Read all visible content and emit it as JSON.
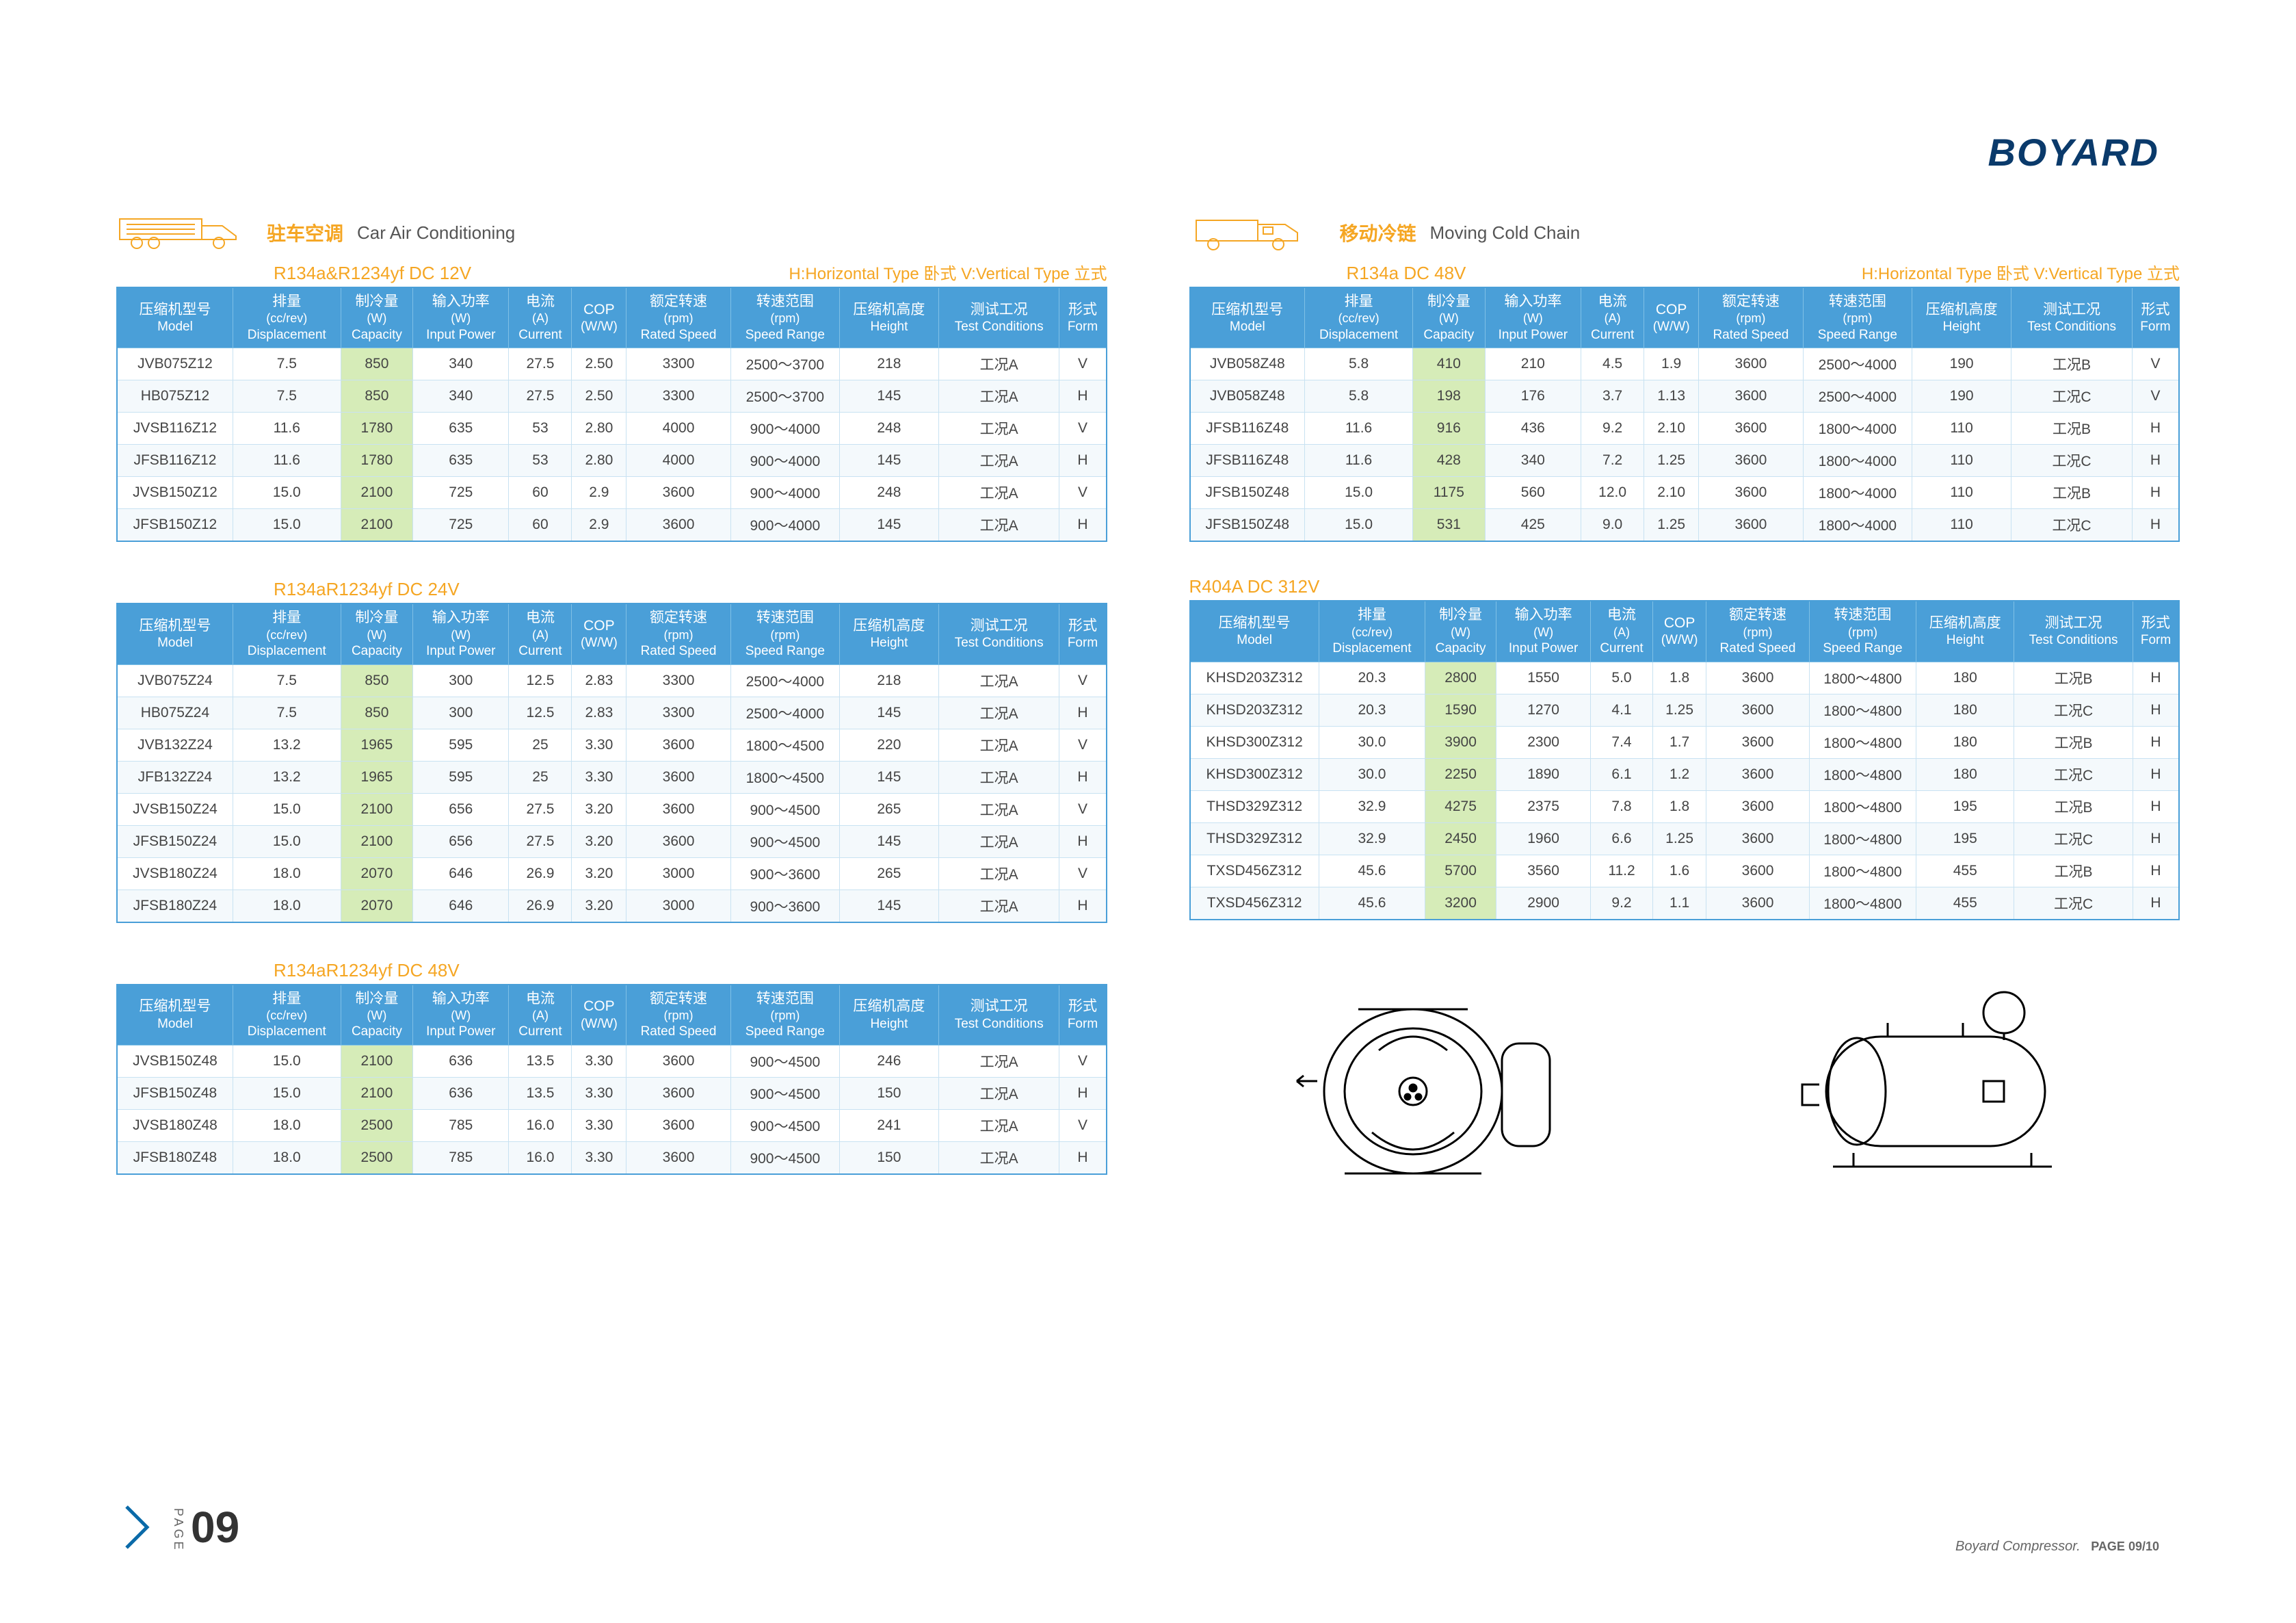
{
  "brand": "BOYARD",
  "legend": "H:Horizontal Type 卧式  V:Vertical Type 立式",
  "footer": {
    "text": "Boyard Compressor.",
    "page": "PAGE 09/10"
  },
  "page_number": "09",
  "page_label": "PAGE",
  "left": {
    "title_cn": "驻车空调",
    "title_en": "Car Air Conditioning",
    "tables": [
      {
        "refrig": "R134a&R1234yf DC 12V",
        "show_legend": true
      },
      {
        "refrig": "R134aR1234yf DC 24V",
        "show_legend": false
      },
      {
        "refrig": "R134aR1234yf DC 48V",
        "show_legend": false
      }
    ]
  },
  "right": {
    "title_cn": "移动冷链",
    "title_en": "Moving Cold Chain",
    "tables": [
      {
        "refrig": "R134a DC 48V",
        "show_legend": true
      },
      {
        "refrig": "R404A DC 312V",
        "standalone": true
      }
    ]
  },
  "columns": [
    {
      "cn": "压缩机型号",
      "unit": "",
      "en": "Model"
    },
    {
      "cn": "排量",
      "unit": "(cc/rev)",
      "en": "Displacement"
    },
    {
      "cn": "制冷量",
      "unit": "(W)",
      "en": "Capacity"
    },
    {
      "cn": "输入功率",
      "unit": "(W)",
      "en": "Input Power"
    },
    {
      "cn": "电流",
      "unit": "(A)",
      "en": "Current"
    },
    {
      "cn": "COP",
      "unit": "",
      "en": "(W/W)"
    },
    {
      "cn": "额定转速",
      "unit": "(rpm)",
      "en": "Rated Speed"
    },
    {
      "cn": "转速范围",
      "unit": "(rpm)",
      "en": "Speed Range"
    },
    {
      "cn": "压缩机高度",
      "unit": "",
      "en": "Height"
    },
    {
      "cn": "测试工况",
      "unit": "",
      "en": "Test Conditions"
    },
    {
      "cn": "形式",
      "unit": "",
      "en": "Form"
    }
  ],
  "table_data": {
    "0": [
      [
        "JVB075Z12",
        "7.5",
        "850",
        "340",
        "27.5",
        "2.50",
        "3300",
        "2500～3700",
        "218",
        "工况A",
        "V"
      ],
      [
        "HB075Z12",
        "7.5",
        "850",
        "340",
        "27.5",
        "2.50",
        "3300",
        "2500～3700",
        "145",
        "工况A",
        "H"
      ],
      [
        "JVSB116Z12",
        "11.6",
        "1780",
        "635",
        "53",
        "2.80",
        "4000",
        "900～4000",
        "248",
        "工况A",
        "V"
      ],
      [
        "JFSB116Z12",
        "11.6",
        "1780",
        "635",
        "53",
        "2.80",
        "4000",
        "900～4000",
        "145",
        "工况A",
        "H"
      ],
      [
        "JVSB150Z12",
        "15.0",
        "2100",
        "725",
        "60",
        "2.9",
        "3600",
        "900～4000",
        "248",
        "工况A",
        "V"
      ],
      [
        "JFSB150Z12",
        "15.0",
        "2100",
        "725",
        "60",
        "2.9",
        "3600",
        "900～4000",
        "145",
        "工况A",
        "H"
      ]
    ],
    "1": [
      [
        "JVB075Z24",
        "7.5",
        "850",
        "300",
        "12.5",
        "2.83",
        "3300",
        "2500～4000",
        "218",
        "工况A",
        "V"
      ],
      [
        "HB075Z24",
        "7.5",
        "850",
        "300",
        "12.5",
        "2.83",
        "3300",
        "2500～4000",
        "145",
        "工况A",
        "H"
      ],
      [
        "JVB132Z24",
        "13.2",
        "1965",
        "595",
        "25",
        "3.30",
        "3600",
        "1800～4500",
        "220",
        "工况A",
        "V"
      ],
      [
        "JFB132Z24",
        "13.2",
        "1965",
        "595",
        "25",
        "3.30",
        "3600",
        "1800～4500",
        "145",
        "工况A",
        "H"
      ],
      [
        "JVSB150Z24",
        "15.0",
        "2100",
        "656",
        "27.5",
        "3.20",
        "3600",
        "900～4500",
        "265",
        "工况A",
        "V"
      ],
      [
        "JFSB150Z24",
        "15.0",
        "2100",
        "656",
        "27.5",
        "3.20",
        "3600",
        "900～4500",
        "145",
        "工况A",
        "H"
      ],
      [
        "JVSB180Z24",
        "18.0",
        "2070",
        "646",
        "26.9",
        "3.20",
        "3000",
        "900～3600",
        "265",
        "工况A",
        "V"
      ],
      [
        "JFSB180Z24",
        "18.0",
        "2070",
        "646",
        "26.9",
        "3.20",
        "3000",
        "900～3600",
        "145",
        "工况A",
        "H"
      ]
    ],
    "2": [
      [
        "JVSB150Z48",
        "15.0",
        "2100",
        "636",
        "13.5",
        "3.30",
        "3600",
        "900～4500",
        "246",
        "工况A",
        "V"
      ],
      [
        "JFSB150Z48",
        "15.0",
        "2100",
        "636",
        "13.5",
        "3.30",
        "3600",
        "900～4500",
        "150",
        "工况A",
        "H"
      ],
      [
        "JVSB180Z48",
        "18.0",
        "2500",
        "785",
        "16.0",
        "3.30",
        "3600",
        "900～4500",
        "241",
        "工况A",
        "V"
      ],
      [
        "JFSB180Z48",
        "18.0",
        "2500",
        "785",
        "16.0",
        "3.30",
        "3600",
        "900～4500",
        "150",
        "工况A",
        "H"
      ]
    ],
    "3": [
      [
        "JVB058Z48",
        "5.8",
        "410",
        "210",
        "4.5",
        "1.9",
        "3600",
        "2500～4000",
        "190",
        "工况B",
        "V"
      ],
      [
        "JVB058Z48",
        "5.8",
        "198",
        "176",
        "3.7",
        "1.13",
        "3600",
        "2500～4000",
        "190",
        "工况C",
        "V"
      ],
      [
        "JFSB116Z48",
        "11.6",
        "916",
        "436",
        "9.2",
        "2.10",
        "3600",
        "1800～4000",
        "110",
        "工况B",
        "H"
      ],
      [
        "JFSB116Z48",
        "11.6",
        "428",
        "340",
        "7.2",
        "1.25",
        "3600",
        "1800～4000",
        "110",
        "工况C",
        "H"
      ],
      [
        "JFSB150Z48",
        "15.0",
        "1175",
        "560",
        "12.0",
        "2.10",
        "3600",
        "1800～4000",
        "110",
        "工况B",
        "H"
      ],
      [
        "JFSB150Z48",
        "15.0",
        "531",
        "425",
        "9.0",
        "1.25",
        "3600",
        "1800～4000",
        "110",
        "工况C",
        "H"
      ]
    ],
    "4": [
      [
        "KHSD203Z312",
        "20.3",
        "2800",
        "1550",
        "5.0",
        "1.8",
        "3600",
        "1800～4800",
        "180",
        "工况B",
        "H"
      ],
      [
        "KHSD203Z312",
        "20.3",
        "1590",
        "1270",
        "4.1",
        "1.25",
        "3600",
        "1800～4800",
        "180",
        "工况C",
        "H"
      ],
      [
        "KHSD300Z312",
        "30.0",
        "3900",
        "2300",
        "7.4",
        "1.7",
        "3600",
        "1800～4800",
        "180",
        "工况B",
        "H"
      ],
      [
        "KHSD300Z312",
        "30.0",
        "2250",
        "1890",
        "6.1",
        "1.2",
        "3600",
        "1800～4800",
        "180",
        "工况C",
        "H"
      ],
      [
        "THSD329Z312",
        "32.9",
        "4275",
        "2375",
        "7.8",
        "1.8",
        "3600",
        "1800～4800",
        "195",
        "工况B",
        "H"
      ],
      [
        "THSD329Z312",
        "32.9",
        "2450",
        "1960",
        "6.6",
        "1.25",
        "3600",
        "1800～4800",
        "195",
        "工况C",
        "H"
      ],
      [
        "TXSD456Z312",
        "45.6",
        "5700",
        "3560",
        "11.2",
        "1.6",
        "3600",
        "1800～4800",
        "455",
        "工况B",
        "H"
      ],
      [
        "TXSD456Z312",
        "45.6",
        "3200",
        "2900",
        "9.2",
        "1.1",
        "3600",
        "1800～4800",
        "455",
        "工况C",
        "H"
      ]
    ]
  }
}
